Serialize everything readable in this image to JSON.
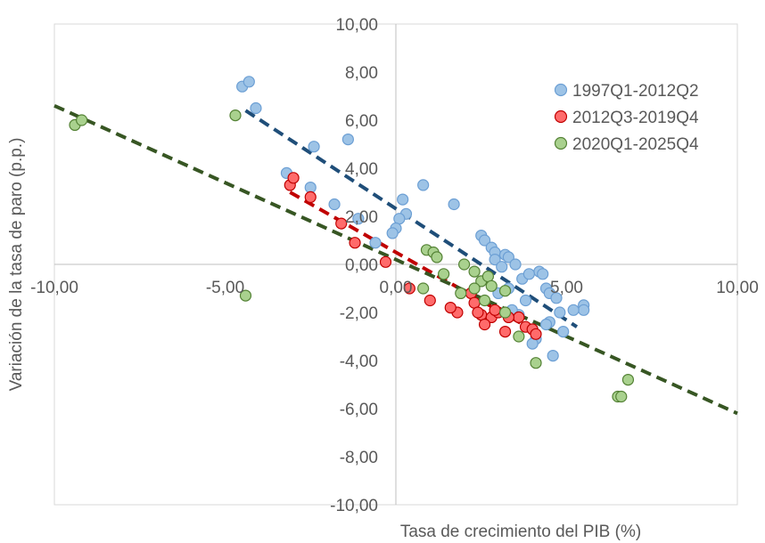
{
  "chart_data": {
    "type": "scatter",
    "xlabel": "Tasa de crecimiento del PIB (%)",
    "ylabel": "Variación de la tasa de paro (p.p.)",
    "xlim": [
      -10,
      10
    ],
    "ylim": [
      -10,
      10
    ],
    "x_ticks": [
      "-10,00",
      "-5,00",
      "0,00",
      "5,00",
      "10,00"
    ],
    "y_ticks": [
      "10,00",
      "8,00",
      "6,00",
      "4,00",
      "2,00",
      "0,00",
      "-2,00",
      "-4,00",
      "-6,00",
      "-8,00",
      "-10,00"
    ],
    "legend_position": "top-right",
    "grid": false,
    "series": [
      {
        "name": "1997Q1-2012Q2",
        "color": "#9DC3E6",
        "edge": "#6C9FD4",
        "trend_color": "#1F4E79",
        "trend": [
          [
            -4.4,
            6.4
          ],
          [
            5.3,
            -2.6
          ]
        ],
        "points": [
          [
            -4.5,
            7.4
          ],
          [
            -4.3,
            7.6
          ],
          [
            -4.1,
            6.5
          ],
          [
            -2.4,
            4.9
          ],
          [
            -1.4,
            5.2
          ],
          [
            -3.2,
            3.8
          ],
          [
            -2.5,
            3.2
          ],
          [
            -1.8,
            2.5
          ],
          [
            -1.1,
            1.9
          ],
          [
            -0.6,
            0.9
          ],
          [
            0.8,
            3.3
          ],
          [
            0.2,
            2.7
          ],
          [
            0.3,
            2.1
          ],
          [
            0.1,
            1.9
          ],
          [
            0.0,
            1.5
          ],
          [
            -0.1,
            1.3
          ],
          [
            1.7,
            2.5
          ],
          [
            2.5,
            1.2
          ],
          [
            2.6,
            1.0
          ],
          [
            2.8,
            0.7
          ],
          [
            2.9,
            0.5
          ],
          [
            3.2,
            0.4
          ],
          [
            3.3,
            0.3
          ],
          [
            2.9,
            0.2
          ],
          [
            3.1,
            -0.1
          ],
          [
            3.5,
            0.0
          ],
          [
            4.2,
            -0.3
          ],
          [
            4.3,
            -0.4
          ],
          [
            4.4,
            -1.0
          ],
          [
            3.7,
            -0.6
          ],
          [
            3.9,
            -0.4
          ],
          [
            4.5,
            -1.2
          ],
          [
            4.7,
            -1.4
          ],
          [
            5.5,
            -1.7
          ],
          [
            5.5,
            -1.9
          ],
          [
            5.2,
            -1.9
          ],
          [
            4.8,
            -2.0
          ],
          [
            4.9,
            -2.8
          ],
          [
            4.5,
            -2.4
          ],
          [
            4.4,
            -2.5
          ],
          [
            4.1,
            -3.1
          ],
          [
            4.0,
            -3.3
          ],
          [
            4.6,
            -3.8
          ],
          [
            3.6,
            -2.1
          ],
          [
            3.8,
            -1.5
          ],
          [
            3.3,
            -1.0
          ],
          [
            3.0,
            -1.2
          ],
          [
            3.4,
            -1.9
          ]
        ]
      },
      {
        "name": "2012Q3-2019Q4",
        "color": "#FF6B6B",
        "edge": "#C00000",
        "trend_color": "#C00000",
        "trend": [
          [
            -3.1,
            3.0
          ],
          [
            4.1,
            -2.8
          ]
        ],
        "points": [
          [
            -3.1,
            3.3
          ],
          [
            -3.0,
            3.6
          ],
          [
            -2.5,
            2.8
          ],
          [
            -1.6,
            1.7
          ],
          [
            -1.2,
            0.9
          ],
          [
            -0.3,
            0.1
          ],
          [
            0.4,
            -1.0
          ],
          [
            1.0,
            -1.5
          ],
          [
            1.8,
            -2.0
          ],
          [
            2.2,
            -1.2
          ],
          [
            2.5,
            -2.1
          ],
          [
            2.3,
            -1.6
          ],
          [
            2.8,
            -2.2
          ],
          [
            3.0,
            -2.0
          ],
          [
            2.6,
            -2.5
          ],
          [
            3.2,
            -2.8
          ],
          [
            3.6,
            -2.2
          ],
          [
            3.8,
            -2.6
          ],
          [
            4.0,
            -2.7
          ],
          [
            4.1,
            -2.9
          ],
          [
            3.3,
            -2.2
          ],
          [
            2.9,
            -1.9
          ],
          [
            2.4,
            -2.0
          ],
          [
            1.6,
            -1.8
          ]
        ]
      },
      {
        "name": "2020Q1-2025Q4",
        "color": "#A9D18E",
        "edge": "#548235",
        "trend_color": "#375623",
        "trend": [
          [
            -10.0,
            6.6
          ],
          [
            10.0,
            -6.2
          ]
        ],
        "points": [
          [
            -9.4,
            5.8
          ],
          [
            -9.2,
            6.0
          ],
          [
            -4.7,
            6.2
          ],
          [
            -4.4,
            -1.3
          ],
          [
            0.9,
            0.6
          ],
          [
            1.1,
            0.5
          ],
          [
            1.2,
            0.3
          ],
          [
            1.4,
            -0.4
          ],
          [
            2.0,
            0.0
          ],
          [
            2.3,
            -0.3
          ],
          [
            2.5,
            -0.7
          ],
          [
            2.7,
            -0.5
          ],
          [
            2.8,
            -0.9
          ],
          [
            0.8,
            -1.0
          ],
          [
            1.9,
            -1.2
          ],
          [
            2.3,
            -1.0
          ],
          [
            3.2,
            -1.1
          ],
          [
            3.6,
            -3.0
          ],
          [
            4.1,
            -4.1
          ],
          [
            6.5,
            -5.5
          ],
          [
            6.6,
            -5.5
          ],
          [
            6.8,
            -4.8
          ],
          [
            3.2,
            -2.0
          ],
          [
            2.6,
            -1.5
          ]
        ]
      }
    ]
  }
}
